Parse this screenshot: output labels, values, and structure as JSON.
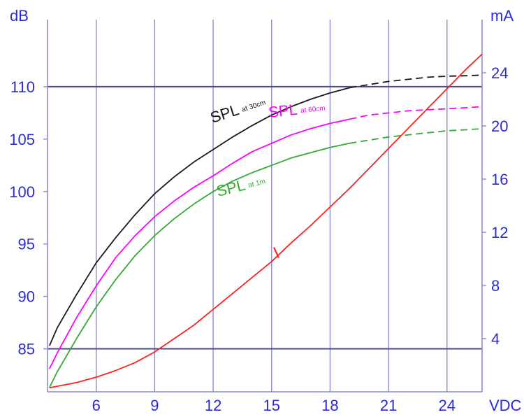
{
  "chart_data": {
    "type": "line",
    "title": "",
    "xlabel": "VDC",
    "ylabel_left": "dB",
    "ylabel_right": "mA",
    "xlim": [
      3.5,
      25.8
    ],
    "ylim_left": [
      80.9,
      116.4
    ],
    "ylim_right": [
      0,
      28
    ],
    "x_ticks": [
      "6",
      "9",
      "12",
      "15",
      "18",
      "21",
      "24"
    ],
    "y_left_ticks": [
      "85",
      "90",
      "95",
      "100",
      "105",
      "110"
    ],
    "y_right_ticks": [
      "4",
      "8",
      "12",
      "16",
      "20",
      "24"
    ],
    "grid": {
      "vertical": true,
      "horizontal_lines_at_dB": [
        85,
        110
      ]
    },
    "colors": {
      "axis": "#2b2bd6",
      "grid": "#8a8ad6",
      "hline": "#4a4a8c",
      "spl_30cm": "#1a1a1a",
      "spl_60cm": "#ff00ff",
      "spl_1m": "#33aa33",
      "current": "#ff2020"
    },
    "series": [
      {
        "key": "spl_30cm",
        "name": "SPL at 30cm",
        "label_main": "SPL",
        "label_sub": "at 30cm",
        "axis": "left",
        "x": [
          3.6,
          4,
          5,
          6,
          7,
          8,
          9,
          10,
          11,
          12,
          13,
          14,
          15,
          16,
          17,
          18,
          19,
          20,
          21,
          22,
          23,
          24,
          25,
          25.8
        ],
        "y": [
          85.3,
          87.0,
          90.2,
          93.2,
          95.6,
          97.8,
          99.8,
          101.4,
          102.8,
          104.0,
          105.2,
          106.3,
          107.3,
          108.1,
          108.8,
          109.4,
          109.9,
          110.2,
          110.5,
          110.7,
          110.9,
          111.0,
          111.05,
          111.1
        ]
      },
      {
        "key": "spl_60cm",
        "name": "SPL at 60cm",
        "label_main": "SPL",
        "label_sub": "at 60cm",
        "axis": "left",
        "x": [
          3.6,
          4,
          5,
          6,
          7,
          8,
          9,
          10,
          11,
          12,
          13,
          14,
          15,
          16,
          17,
          18,
          19,
          20,
          21,
          22,
          23,
          24,
          25,
          25.8
        ],
        "y": [
          83.1,
          84.6,
          88.0,
          91.0,
          93.7,
          95.8,
          97.6,
          99.1,
          100.4,
          101.5,
          102.7,
          103.8,
          104.6,
          105.4,
          106.0,
          106.5,
          106.9,
          107.3,
          107.5,
          107.7,
          107.8,
          107.9,
          108.0,
          108.1
        ]
      },
      {
        "key": "spl_1m",
        "name": "SPL at 1m",
        "label_main": "SPL",
        "label_sub": "at 1m",
        "axis": "left",
        "x": [
          3.6,
          4,
          5,
          6,
          7,
          8,
          9,
          10,
          11,
          12,
          13,
          14,
          15,
          16,
          17,
          18,
          19,
          20,
          21,
          22,
          23,
          24,
          25,
          25.8
        ],
        "y": [
          81.3,
          82.8,
          86.0,
          89.0,
          91.6,
          93.9,
          95.8,
          97.4,
          98.8,
          100.0,
          101.0,
          101.8,
          102.5,
          103.2,
          103.7,
          104.2,
          104.6,
          104.9,
          105.2,
          105.4,
          105.6,
          105.8,
          105.9,
          106.0
        ]
      },
      {
        "key": "current",
        "name": "I",
        "label_main": "I",
        "label_sub": "",
        "axis": "right",
        "x": [
          3.6,
          5,
          6,
          7,
          8,
          9,
          10,
          11,
          12,
          13,
          14,
          15,
          16,
          17,
          18,
          19,
          20,
          21,
          22,
          23,
          24,
          25,
          25.8
        ],
        "y": [
          0.3,
          0.7,
          1.1,
          1.6,
          2.2,
          3.0,
          4.0,
          5.0,
          6.2,
          7.4,
          8.6,
          9.8,
          11.2,
          12.5,
          13.9,
          15.3,
          16.8,
          18.3,
          19.8,
          21.3,
          22.8,
          24.3,
          25.4
        ]
      }
    ],
    "dashed_from_x": 19.5
  }
}
